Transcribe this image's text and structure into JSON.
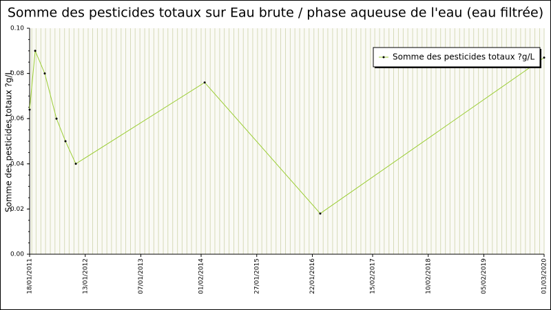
{
  "chart_data": {
    "type": "line",
    "title": "Somme des pesticides totaux sur Eau brute / phase aqueuse de l'eau (eau filtrée)",
    "y_label": "Somme des pesticides totaux ?g/L",
    "x": [
      "18/01/2011",
      "23/02/2011",
      "26/04/2011",
      "11/07/2011",
      "07/09/2011",
      "13/11/2011",
      "24/02/2014",
      "13/03/2016",
      "01/03/2020"
    ],
    "series": [
      {
        "name": "Somme des pesticides totaux ?g/L",
        "color": "#9acd32",
        "values": [
          0.064,
          0.09,
          0.08,
          0.06,
          0.05,
          0.04,
          0.076,
          0.018,
          0.087
        ]
      }
    ],
    "xlim": [
      "18/01/2011",
      "01/03/2020"
    ],
    "xticks": [
      "18/01/2011",
      "13/01/2012",
      "07/01/2013",
      "01/02/2014",
      "27/01/2015",
      "22/01/2016",
      "15/02/2017",
      "10/02/2018",
      "05/02/2019",
      "01/03/2020"
    ],
    "ylim": [
      0,
      0.1
    ],
    "yticks": [
      {
        "value": 0,
        "label": "0.00"
      },
      0.02,
      0.04,
      0.06,
      0.08,
      {
        "value": 0.1,
        "label": "0.10"
      }
    ],
    "grid": true,
    "legend": "upper right"
  }
}
